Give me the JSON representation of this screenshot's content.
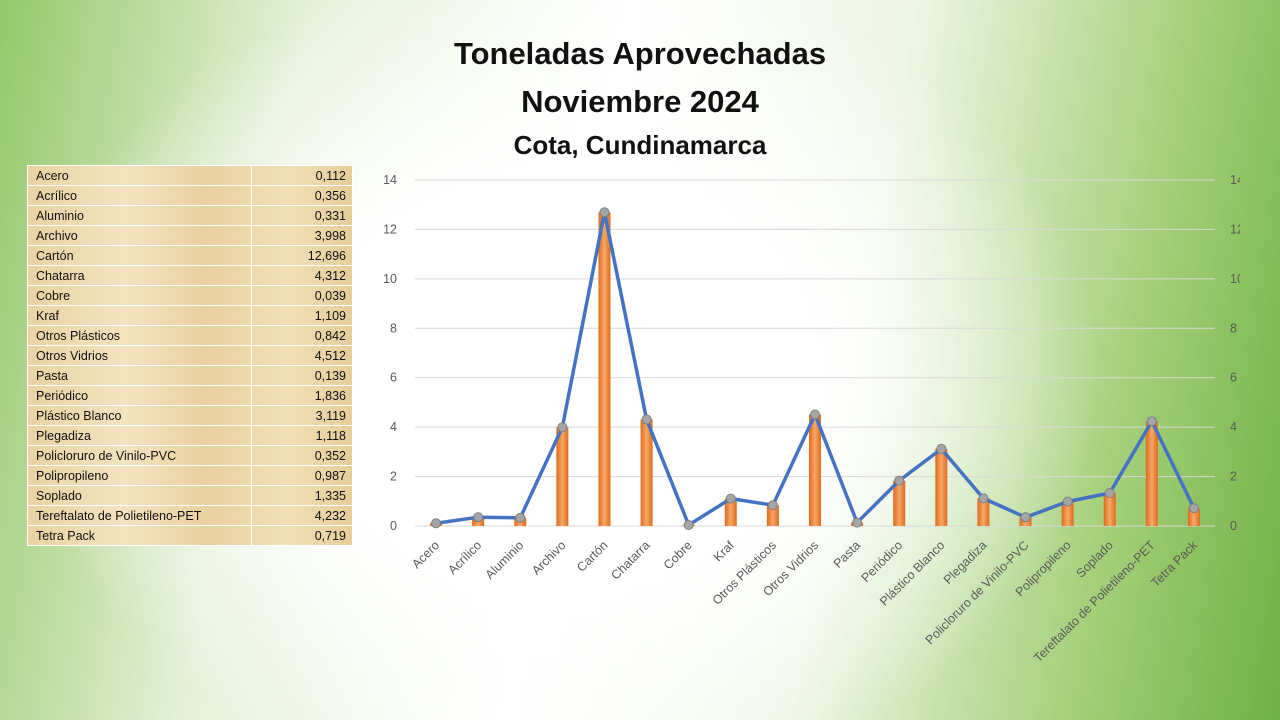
{
  "header": {
    "title_line1": "Toneladas Aprovechadas",
    "title_line2": "Noviembre 2024",
    "subtitle": "Cota, Cundinamarca"
  },
  "table": {
    "rows": [
      {
        "name": "Acero",
        "value": "0,112"
      },
      {
        "name": "Acrílico",
        "value": "0,356"
      },
      {
        "name": "Aluminio",
        "value": "0,331"
      },
      {
        "name": "Archivo",
        "value": "3,998"
      },
      {
        "name": "Cartón",
        "value": "12,696"
      },
      {
        "name": "Chatarra",
        "value": "4,312"
      },
      {
        "name": "Cobre",
        "value": "0,039"
      },
      {
        "name": "Kraf",
        "value": "1,109"
      },
      {
        "name": "Otros Plásticos",
        "value": "0,842"
      },
      {
        "name": "Otros Vidrios",
        "value": "4,512"
      },
      {
        "name": "Pasta",
        "value": "0,139"
      },
      {
        "name": "Periódico",
        "value": "1,836"
      },
      {
        "name": "Plástico Blanco",
        "value": "3,119"
      },
      {
        "name": "Plegadiza",
        "value": "1,118"
      },
      {
        "name": "Policloruro de Vinilo-PVC",
        "value": "0,352"
      },
      {
        "name": "Polipropileno",
        "value": "0,987"
      },
      {
        "name": "Soplado",
        "value": "1,335"
      },
      {
        "name": "Tereftalato de Polietileno-PET",
        "value": "4,232"
      },
      {
        "name": "Tetra Pack",
        "value": "0,719"
      }
    ]
  },
  "chart_data": {
    "type": "bar",
    "combo": "bar + line (same series on primary and secondary axes)",
    "categories": [
      "Acero",
      "Acrílico",
      "Aluminio",
      "Archivo",
      "Cartón",
      "Chatarra",
      "Cobre",
      "Kraf",
      "Otros Plásticos",
      "Otros Vidrios",
      "Pasta",
      "Periódico",
      "Plástico Blanco",
      "Plegadiza",
      "Policloruro de Vinilo-PVC",
      "Polipropileno",
      "Soplado",
      "Tereftalato de Polietileno-PET",
      "Tetra Pack"
    ],
    "values": [
      0.112,
      0.356,
      0.331,
      3.998,
      12.696,
      4.312,
      0.039,
      1.109,
      0.842,
      4.512,
      0.139,
      1.836,
      3.119,
      1.118,
      0.352,
      0.987,
      1.335,
      4.232,
      0.719
    ],
    "ylim": [
      0,
      14
    ],
    "yticks": [
      0,
      2,
      4,
      6,
      8,
      10,
      12,
      14
    ],
    "secondary_ylim": [
      0,
      14
    ],
    "grid": true,
    "legend": "none",
    "colors": {
      "bar": "#ed7d31",
      "bar_light": "#f4b183",
      "line": "#4472c4",
      "marker": "#a5a5a5",
      "grid": "#d9d9d9"
    }
  }
}
